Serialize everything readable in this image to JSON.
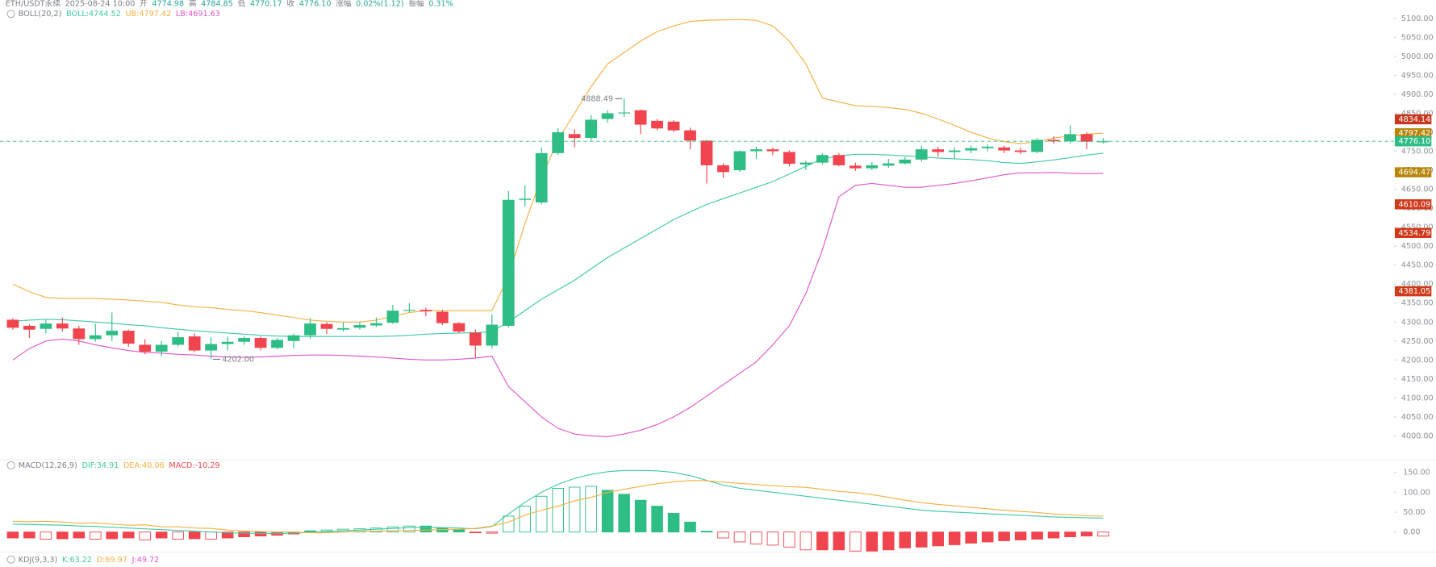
{
  "header": {
    "items": [
      {
        "text": "ETH/USDT永续",
        "color": "#7a7f87"
      },
      {
        "text": "2025-08-24 10:00",
        "color": "#7a7f87"
      },
      {
        "text": "开",
        "color": "#7a7f87"
      },
      {
        "text": "4774.98",
        "color": "#26a69a"
      },
      {
        "text": "高",
        "color": "#7a7f87"
      },
      {
        "text": "4784.85",
        "color": "#26a69a"
      },
      {
        "text": "低",
        "color": "#7a7f87"
      },
      {
        "text": "4770.17",
        "color": "#26a69a"
      },
      {
        "text": "收",
        "color": "#7a7f87"
      },
      {
        "text": "4776.10",
        "color": "#26a69a"
      },
      {
        "text": "涨幅",
        "color": "#7a7f87"
      },
      {
        "text": "0.02%(1.12)",
        "color": "#26a69a"
      },
      {
        "text": "振幅",
        "color": "#7a7f87"
      },
      {
        "text": "0.31%",
        "color": "#26a69a"
      }
    ]
  },
  "chart_data": [
    {
      "type": "candlestick",
      "legend_title": "BOLL(20,2)",
      "up_color": "#2ebd85",
      "down_color": "#f0444f",
      "open": [
        4306,
        4290,
        4282,
        4296,
        4283,
        4255,
        4265,
        4277,
        4240,
        4222,
        4240,
        4262,
        4225,
        4242,
        4248,
        4258,
        4232,
        4250,
        4265,
        4295,
        4280,
        4285,
        4291,
        4298,
        4330,
        4332,
        4327,
        4297,
        4272,
        4238,
        4290,
        4622,
        4615,
        4745,
        4795,
        4785,
        4835,
        4850,
        4858,
        4830,
        4828,
        4805,
        4778,
        4713,
        4700,
        4750,
        4755,
        4748,
        4715,
        4720,
        4740,
        4712,
        4705,
        4712,
        4718,
        4728,
        4755,
        4748,
        4752,
        4758,
        4760,
        4752,
        4748,
        4780,
        4776,
        4795,
        4774.98
      ],
      "high": [
        4310,
        4295,
        4305,
        4312,
        4290,
        4295,
        4325,
        4280,
        4255,
        4250,
        4275,
        4270,
        4260,
        4262,
        4262,
        4262,
        4258,
        4270,
        4310,
        4300,
        4300,
        4300,
        4312,
        4345,
        4350,
        4338,
        4332,
        4300,
        4280,
        4320,
        4645,
        4660,
        4760,
        4810,
        4808,
        4845,
        4858,
        4888.49,
        4860,
        4835,
        4832,
        4812,
        4780,
        4718,
        4752,
        4762,
        4760,
        4752,
        4725,
        4745,
        4745,
        4720,
        4722,
        4730,
        4735,
        4765,
        4762,
        4760,
        4765,
        4768,
        4765,
        4760,
        4785,
        4790,
        4818,
        4800,
        4784.85
      ],
      "low": [
        4280,
        4258,
        4270,
        4275,
        4240,
        4248,
        4250,
        4235,
        4215,
        4210,
        4235,
        4220,
        4202,
        4225,
        4240,
        4225,
        4228,
        4230,
        4255,
        4268,
        4275,
        4280,
        4287,
        4295,
        4325,
        4315,
        4292,
        4270,
        4205,
        4230,
        4285,
        4605,
        4610,
        4740,
        4760,
        4778,
        4825,
        4840,
        4795,
        4805,
        4800,
        4755,
        4665,
        4680,
        4695,
        4730,
        4740,
        4710,
        4700,
        4715,
        4710,
        4698,
        4700,
        4706,
        4715,
        4722,
        4735,
        4730,
        4745,
        4750,
        4745,
        4742,
        4745,
        4770,
        4770,
        4755,
        4770.17
      ],
      "close": [
        4285,
        4280,
        4296,
        4283,
        4255,
        4265,
        4277,
        4243,
        4222,
        4240,
        4260,
        4225,
        4242,
        4248,
        4258,
        4232,
        4253,
        4265,
        4296,
        4282,
        4284,
        4292,
        4297,
        4330,
        4332,
        4328,
        4297,
        4275,
        4238,
        4293,
        4622,
        4625,
        4745,
        4800,
        4785,
        4833,
        4850,
        4852,
        4820,
        4810,
        4805,
        4778,
        4713,
        4695,
        4750,
        4755,
        4750,
        4717,
        4720,
        4740,
        4713,
        4705,
        4713,
        4718,
        4728,
        4755,
        4748,
        4752,
        4758,
        4762,
        4752,
        4748,
        4780,
        4776,
        4795,
        4775,
        4776.1
      ],
      "series": [
        {
          "name": "BOLL:4744.52",
          "color": "#3ec9a7",
          "values": [
            4302,
            4305,
            4307,
            4306,
            4303,
            4300,
            4297,
            4293,
            4290,
            4285,
            4281,
            4277,
            4274,
            4271,
            4268,
            4265,
            4263,
            4262,
            4262,
            4262,
            4262,
            4262,
            4262,
            4263,
            4265,
            4268,
            4270,
            4271,
            4272,
            4275,
            4300,
            4330,
            4360,
            4385,
            4410,
            4440,
            4470,
            4495,
            4520,
            4545,
            4570,
            4590,
            4610,
            4625,
            4640,
            4655,
            4670,
            4690,
            4710,
            4730,
            4738,
            4742,
            4742,
            4740,
            4738,
            4735,
            4732,
            4730,
            4728,
            4725,
            4720,
            4718,
            4722,
            4727,
            4733,
            4740,
            4744.52
          ]
        },
        {
          "name": "UB:4797.42",
          "color": "#f5b041",
          "values": [
            4400,
            4380,
            4365,
            4362,
            4362,
            4362,
            4360,
            4358,
            4355,
            4352,
            4345,
            4340,
            4338,
            4333,
            4330,
            4325,
            4318,
            4312,
            4305,
            4302,
            4300,
            4300,
            4305,
            4315,
            4325,
            4330,
            4330,
            4330,
            4330,
            4330,
            4420,
            4560,
            4680,
            4780,
            4850,
            4920,
            4980,
            5010,
            5040,
            5065,
            5080,
            5092,
            5095,
            5096,
            5097,
            5095,
            5080,
            5040,
            4980,
            4890,
            4880,
            4870,
            4868,
            4865,
            4860,
            4850,
            4835,
            4818,
            4800,
            4785,
            4775,
            4770,
            4775,
            4785,
            4790,
            4795,
            4797.42
          ]
        },
        {
          "name": "LB:4691.63",
          "color": "#e056c9",
          "values": [
            4200,
            4230,
            4250,
            4255,
            4250,
            4240,
            4232,
            4225,
            4220,
            4218,
            4215,
            4213,
            4210,
            4208,
            4207,
            4208,
            4210,
            4212,
            4213,
            4213,
            4212,
            4210,
            4208,
            4205,
            4202,
            4200,
            4200,
            4202,
            4205,
            4210,
            4130,
            4090,
            4050,
            4020,
            4005,
            4000,
            3998,
            4005,
            4015,
            4030,
            4050,
            4075,
            4105,
            4135,
            4165,
            4195,
            4240,
            4290,
            4375,
            4490,
            4630,
            4660,
            4665,
            4660,
            4655,
            4655,
            4660,
            4665,
            4672,
            4680,
            4688,
            4693,
            4693,
            4694,
            4692,
            4691,
            4691.63
          ]
        }
      ],
      "max_label": "4888.49",
      "min_label": "4202.00",
      "ylim": [
        3942,
        5136
      ],
      "yticks": [
        {
          "value": 4000,
          "label": "4000.00"
        },
        {
          "value": 4050,
          "label": "4050.00"
        },
        {
          "value": 4100,
          "label": "4100.00"
        },
        {
          "value": 4150,
          "label": "4150.00"
        },
        {
          "value": 4200,
          "label": "4200.00"
        },
        {
          "value": 4250,
          "label": "4250.00"
        },
        {
          "value": 4300,
          "label": "4300.00"
        },
        {
          "value": 4350,
          "label": "4350.00"
        },
        {
          "value": 4400,
          "label": "4400.00"
        },
        {
          "value": 4450,
          "label": "4450.00"
        },
        {
          "value": 4500,
          "label": "4500.00"
        },
        {
          "value": 4550,
          "label": "4550.00"
        },
        {
          "value": 4600,
          "label": "4600.00"
        },
        {
          "value": 4650,
          "label": "4650.00"
        },
        {
          "value": 4700,
          "label": "4700.00"
        },
        {
          "value": 4750,
          "label": "4750.00"
        },
        {
          "value": 4800,
          "label": "4800.00"
        },
        {
          "value": 4850,
          "label": "4850.00"
        },
        {
          "value": 4900,
          "label": "4900.00"
        },
        {
          "value": 4950,
          "label": "4950.00"
        },
        {
          "value": 5000,
          "label": "5000.00"
        },
        {
          "value": 5050,
          "label": "5050.00"
        },
        {
          "value": 5100,
          "label": "5100.00"
        }
      ],
      "price_tags": [
        {
          "value": 4834.14,
          "label": "4834.14",
          "color": "#c8381e"
        },
        {
          "value": 4797.42,
          "label": "4797.42",
          "color": "#b8860b"
        },
        {
          "value": 4776.1,
          "label": "4776.10",
          "color": "#2ebd85",
          "dashed": true
        },
        {
          "value": 4694.47,
          "label": "4694.47",
          "color": "#b8860b"
        },
        {
          "value": 4610.09,
          "label": "4610.09",
          "color": "#d03a1a"
        },
        {
          "value": 4534.79,
          "label": "4534.79",
          "color": "#d03a1a"
        },
        {
          "value": 4381.05,
          "label": "4381.05",
          "color": "#d03a1a"
        }
      ]
    },
    {
      "type": "macd",
      "legend_title": "MACD(12,26,9)",
      "series": [
        {
          "name": "DIF:34.91",
          "color": "#3ec9a7",
          "values": [
            20,
            19,
            18,
            17,
            15,
            14,
            12,
            10,
            8,
            6,
            4,
            2,
            0,
            -2,
            -3,
            -4,
            -4,
            -3,
            -1,
            1,
            3,
            5,
            7,
            9,
            11,
            12,
            11,
            10,
            8,
            14,
            45,
            75,
            100,
            120,
            135,
            145,
            152,
            155,
            155,
            154,
            150,
            142,
            130,
            118,
            110,
            105,
            100,
            95,
            90,
            85,
            80,
            75,
            70,
            65,
            60,
            55,
            52,
            50,
            48,
            46,
            44,
            42,
            40,
            38,
            37,
            36,
            34.91
          ]
        },
        {
          "name": "DEA:40.06",
          "color": "#f5b041",
          "values": [
            27,
            26,
            27,
            25,
            22,
            23,
            20,
            17,
            18,
            13,
            13,
            10,
            9,
            5,
            3,
            1,
            0,
            0,
            -2,
            -2,
            0,
            1,
            2,
            3,
            4,
            5,
            6,
            7,
            9,
            15,
            25,
            42.5,
            55,
            65,
            78.5,
            87.5,
            99.5,
            107.5,
            115,
            121.5,
            126.5,
            129.5,
            129,
            125.5,
            122.5,
            120,
            116.5,
            114,
            112.5,
            107.5,
            102.5,
            99,
            94,
            87.5,
            80,
            74,
            69.5,
            66,
            62,
            58.5,
            55,
            52,
            49,
            45.5,
            43,
            41,
            40.06
          ]
        }
      ],
      "histogram": {
        "name": "MACD:-10.29",
        "up_color": "#2ebd85",
        "down_color": "#f0444f",
        "values": [
          -15,
          -15,
          -18,
          -17,
          -15,
          -18,
          -17,
          -15,
          -20,
          -15,
          -18,
          -17,
          -18,
          -15,
          -12,
          -10,
          -8,
          -5,
          3,
          5,
          7,
          8,
          10,
          13,
          15,
          15,
          10,
          6,
          -2,
          -3,
          40,
          65,
          90,
          110,
          113,
          115,
          105,
          95,
          80,
          65,
          47,
          25,
          2,
          -15,
          -25,
          -30,
          -33,
          -38,
          -45,
          -45,
          -45,
          -48,
          -48,
          -45,
          -40,
          -38,
          -35,
          -32,
          -28,
          -25,
          -22,
          -20,
          -18,
          -15,
          -12,
          -10,
          -10.29
        ]
      },
      "ylim": [
        -44,
        175
      ],
      "yticks": [
        {
          "value": 0,
          "label": "0.00"
        },
        {
          "value": 50,
          "label": "50.00"
        },
        {
          "value": 100,
          "label": "100.00"
        },
        {
          "value": 150,
          "label": "150.00"
        }
      ]
    },
    {
      "type": "kdj",
      "legend_title": "KDJ(9,3,3)",
      "labels": [
        {
          "text": "K:63.22",
          "color": "#3ec9a7"
        },
        {
          "text": "D:69.97",
          "color": "#f5b041"
        },
        {
          "text": "J:49.72",
          "color": "#e056c9"
        }
      ]
    }
  ]
}
